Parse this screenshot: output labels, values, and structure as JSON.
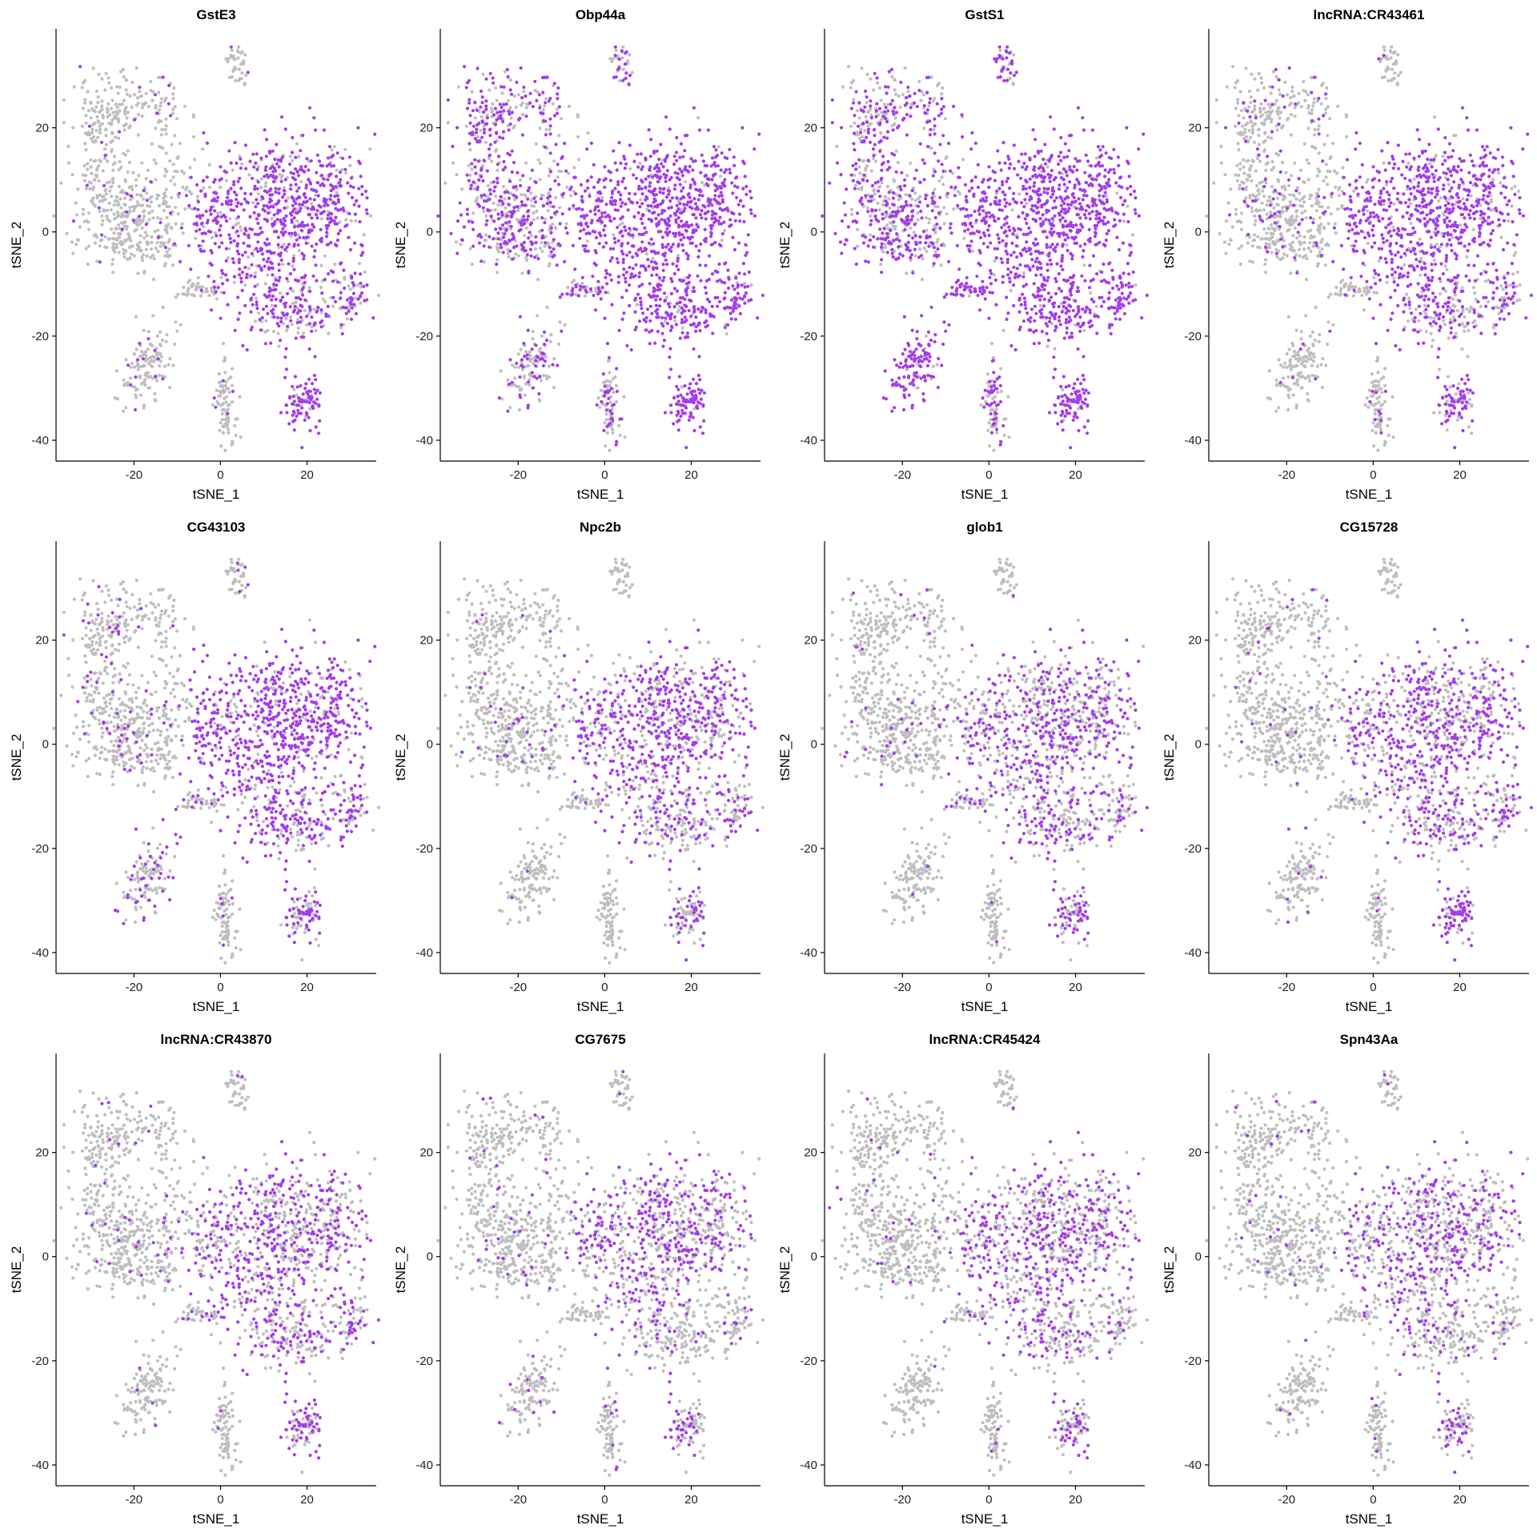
{
  "figure": {
    "colors": {
      "low": "#bebebe",
      "high": "#a33de6",
      "axis": "#000000"
    }
  },
  "chart_data": [
    {
      "type": "scatter",
      "title": "GstE3",
      "xlabel": "tSNE_1",
      "ylabel": "tSNE_2",
      "xlim": [
        -38,
        36
      ],
      "ylim": [
        -44,
        39
      ],
      "xticks": [
        -20,
        0,
        20
      ],
      "yticks": [
        -40,
        -20,
        0,
        20
      ],
      "grid": false,
      "cluster_expression": {
        "left_mass": 0.05,
        "center_right": 0.85,
        "bottom_left": 0.05,
        "bottom_center": 0.1,
        "bottom_right": 0.9,
        "right_lower": 0.55,
        "mid_arm": 0.05,
        "top_small": 0.05
      }
    },
    {
      "type": "scatter",
      "title": "Obp44a",
      "xlabel": "tSNE_1",
      "ylabel": "tSNE_2",
      "xlim": [
        -38,
        36
      ],
      "ylim": [
        -44,
        39
      ],
      "xticks": [
        -20,
        0,
        20
      ],
      "yticks": [
        -40,
        -20,
        0,
        20
      ],
      "grid": false,
      "cluster_expression": {
        "left_mass": 0.6,
        "center_right": 0.95,
        "bottom_left": 0.45,
        "bottom_center": 0.45,
        "bottom_right": 0.95,
        "right_lower": 0.9,
        "mid_arm": 0.5,
        "top_small": 0.5
      }
    },
    {
      "type": "scatter",
      "title": "GstS1",
      "xlabel": "tSNE_1",
      "ylabel": "tSNE_2",
      "xlim": [
        -38,
        36
      ],
      "ylim": [
        -44,
        39
      ],
      "xticks": [
        -20,
        0,
        20
      ],
      "yticks": [
        -40,
        -20,
        0,
        20
      ],
      "grid": false,
      "cluster_expression": {
        "left_mass": 0.55,
        "center_right": 0.95,
        "bottom_left": 0.9,
        "bottom_center": 0.55,
        "bottom_right": 0.95,
        "right_lower": 0.9,
        "mid_arm": 0.95,
        "top_small": 0.6
      }
    },
    {
      "type": "scatter",
      "title": "lncRNA:CR43461",
      "xlabel": "tSNE_1",
      "ylabel": "tSNE_2",
      "xlim": [
        -38,
        36
      ],
      "ylim": [
        -44,
        39
      ],
      "xticks": [
        -20,
        0,
        20
      ],
      "yticks": [
        -40,
        -20,
        0,
        20
      ],
      "grid": false,
      "cluster_expression": {
        "left_mass": 0.15,
        "center_right": 0.8,
        "bottom_left": 0.05,
        "bottom_center": 0.1,
        "bottom_right": 0.6,
        "right_lower": 0.45,
        "mid_arm": 0.05,
        "top_small": 0.05
      }
    },
    {
      "type": "scatter",
      "title": "CG43103",
      "xlabel": "tSNE_1",
      "ylabel": "tSNE_2",
      "xlim": [
        -38,
        36
      ],
      "ylim": [
        -44,
        39
      ],
      "xticks": [
        -20,
        0,
        20
      ],
      "yticks": [
        -40,
        -20,
        0,
        20
      ],
      "grid": false,
      "cluster_expression": {
        "left_mass": 0.1,
        "center_right": 0.8,
        "bottom_left": 0.3,
        "bottom_center": 0.1,
        "bottom_right": 0.6,
        "right_lower": 0.5,
        "mid_arm": 0.15,
        "top_small": 0.1
      }
    },
    {
      "type": "scatter",
      "title": "Npc2b",
      "xlabel": "tSNE_1",
      "ylabel": "tSNE_2",
      "xlim": [
        -38,
        36
      ],
      "ylim": [
        -44,
        39
      ],
      "xticks": [
        -20,
        0,
        20
      ],
      "yticks": [
        -40,
        -20,
        0,
        20
      ],
      "grid": false,
      "cluster_expression": {
        "left_mass": 0.06,
        "center_right": 0.6,
        "bottom_left": 0.03,
        "bottom_center": 0.05,
        "bottom_right": 0.55,
        "right_lower": 0.35,
        "mid_arm": 0.03,
        "top_small": 0.05
      }
    },
    {
      "type": "scatter",
      "title": "glob1",
      "xlabel": "tSNE_1",
      "ylabel": "tSNE_2",
      "xlim": [
        -38,
        36
      ],
      "ylim": [
        -44,
        39
      ],
      "xticks": [
        -20,
        0,
        20
      ],
      "yticks": [
        -40,
        -20,
        0,
        20
      ],
      "grid": false,
      "cluster_expression": {
        "left_mass": 0.04,
        "center_right": 0.5,
        "bottom_left": 0.02,
        "bottom_center": 0.05,
        "bottom_right": 0.45,
        "right_lower": 0.4,
        "mid_arm": 0.3,
        "top_small": 0.05
      }
    },
    {
      "type": "scatter",
      "title": "CG15728",
      "xlabel": "tSNE_1",
      "ylabel": "tSNE_2",
      "xlim": [
        -38,
        36
      ],
      "ylim": [
        -44,
        39
      ],
      "xticks": [
        -20,
        0,
        20
      ],
      "yticks": [
        -40,
        -20,
        0,
        20
      ],
      "grid": false,
      "cluster_expression": {
        "left_mass": 0.05,
        "center_right": 0.55,
        "bottom_left": 0.02,
        "bottom_center": 0.02,
        "bottom_right": 0.75,
        "right_lower": 0.45,
        "mid_arm": 0.1,
        "top_small": 0.03
      }
    },
    {
      "type": "scatter",
      "title": "lncRNA:CR43870",
      "xlabel": "tSNE_1",
      "ylabel": "tSNE_2",
      "xlim": [
        -38,
        36
      ],
      "ylim": [
        -44,
        39
      ],
      "xticks": [
        -20,
        0,
        20
      ],
      "yticks": [
        -40,
        -20,
        0,
        20
      ],
      "grid": false,
      "cluster_expression": {
        "left_mass": 0.05,
        "center_right": 0.5,
        "bottom_left": 0.02,
        "bottom_center": 0.05,
        "bottom_right": 0.45,
        "right_lower": 0.35,
        "mid_arm": 0.2,
        "top_small": 0.05
      }
    },
    {
      "type": "scatter",
      "title": "CG7675",
      "xlabel": "tSNE_1",
      "ylabel": "tSNE_2",
      "xlim": [
        -38,
        36
      ],
      "ylim": [
        -44,
        39
      ],
      "xticks": [
        -20,
        0,
        20
      ],
      "yticks": [
        -40,
        -20,
        0,
        20
      ],
      "grid": false,
      "cluster_expression": {
        "left_mass": 0.05,
        "center_right": 0.45,
        "bottom_left": 0.05,
        "bottom_center": 0.08,
        "bottom_right": 0.35,
        "right_lower": 0.1,
        "mid_arm": 0.03,
        "top_small": 0.05
      }
    },
    {
      "type": "scatter",
      "title": "lncRNA:CR45424",
      "xlabel": "tSNE_1",
      "ylabel": "tSNE_2",
      "xlim": [
        -38,
        36
      ],
      "ylim": [
        -44,
        39
      ],
      "xticks": [
        -20,
        0,
        20
      ],
      "yticks": [
        -40,
        -20,
        0,
        20
      ],
      "grid": false,
      "cluster_expression": {
        "left_mass": 0.03,
        "center_right": 0.45,
        "bottom_left": 0.02,
        "bottom_center": 0.08,
        "bottom_right": 0.4,
        "right_lower": 0.2,
        "mid_arm": 0.05,
        "top_small": 0.03
      }
    },
    {
      "type": "scatter",
      "title": "Spn43Aa",
      "xlabel": "tSNE_1",
      "ylabel": "tSNE_2",
      "xlim": [
        -38,
        36
      ],
      "ylim": [
        -44,
        39
      ],
      "xticks": [
        -20,
        0,
        20
      ],
      "yticks": [
        -40,
        -20,
        0,
        20
      ],
      "grid": false,
      "cluster_expression": {
        "left_mass": 0.03,
        "center_right": 0.4,
        "bottom_left": 0.02,
        "bottom_center": 0.02,
        "bottom_right": 0.35,
        "right_lower": 0.1,
        "mid_arm": 0.02,
        "top_small": 0.02
      }
    }
  ]
}
